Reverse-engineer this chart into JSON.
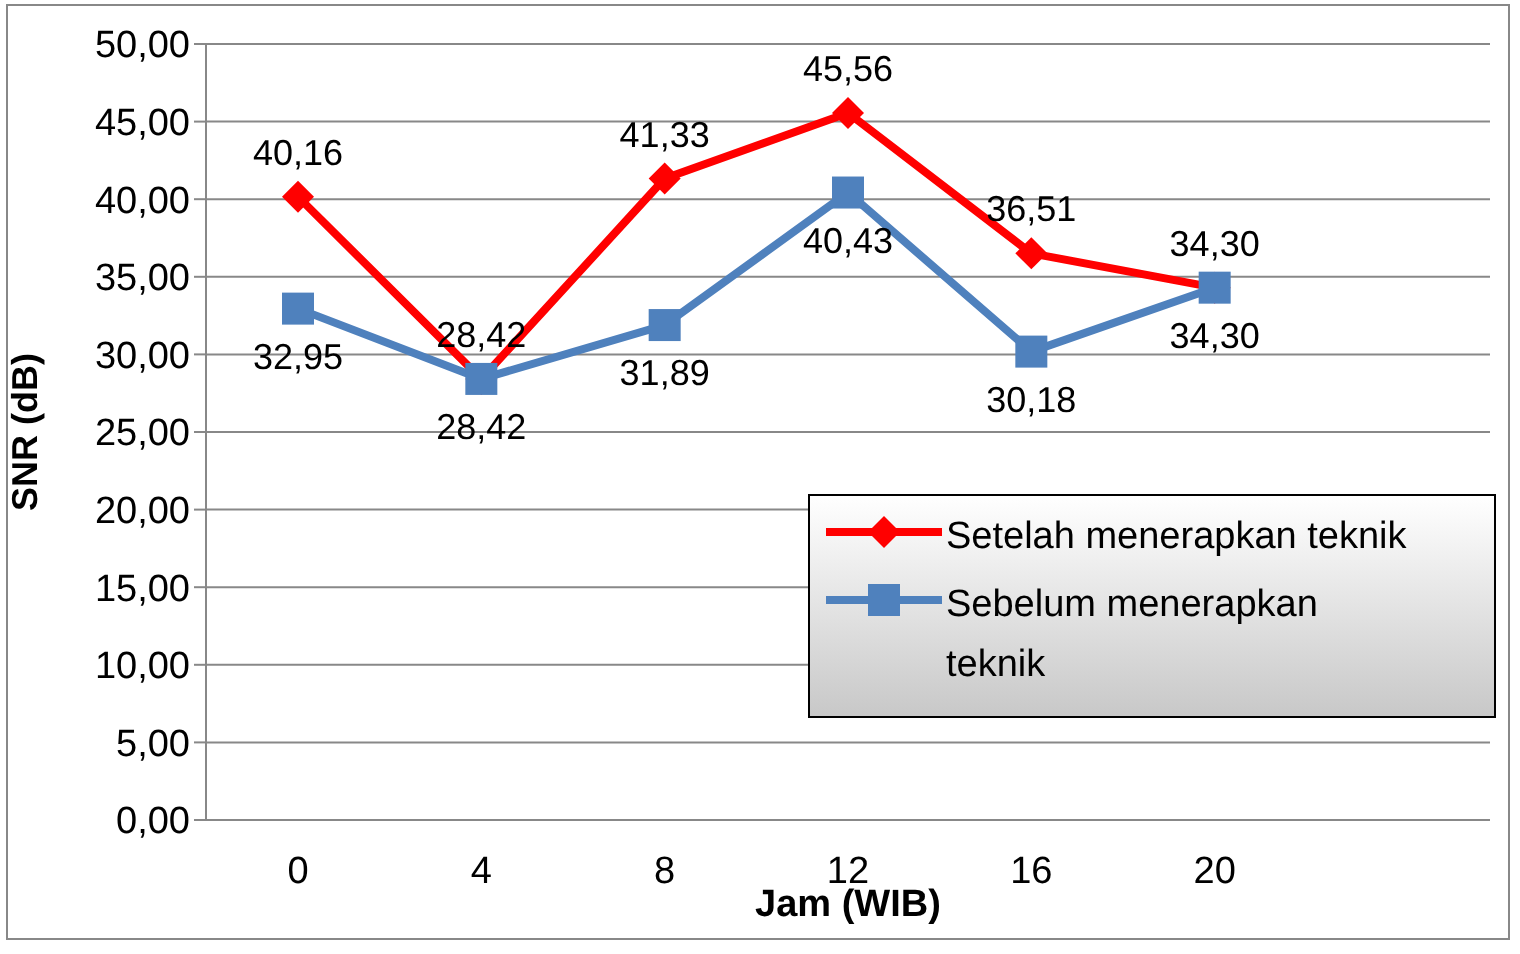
{
  "chart_data": {
    "type": "line",
    "xlabel": "Jam (WIB)",
    "ylabel": "SNR (dB)",
    "categories": [
      "0",
      "4",
      "8",
      "12",
      "16",
      "20",
      null
    ],
    "series": [
      {
        "name": "Setelah menerapkan teknik",
        "color": "#ff0000",
        "marker": "diamond",
        "values": [
          40.16,
          28.42,
          41.33,
          45.56,
          36.51,
          34.3,
          null
        ],
        "value_labels": [
          "40,16",
          "28,42",
          "41,33",
          "45,56",
          "36,51",
          "34,30",
          null
        ]
      },
      {
        "name": "Sebelum menerapkan teknik",
        "color": "#4f81bd",
        "marker": "square",
        "values": [
          32.95,
          28.42,
          31.89,
          40.43,
          30.18,
          34.3,
          null
        ],
        "value_labels": [
          "32,95",
          "28,42",
          "31,89",
          "40,43",
          "30,18",
          "34,30",
          null
        ]
      }
    ],
    "ylim": [
      0,
      50
    ],
    "yticks": [
      {
        "value": 0,
        "label": "0,00"
      },
      {
        "value": 5,
        "label": "5,00"
      },
      {
        "value": 10,
        "label": "10,00"
      },
      {
        "value": 15,
        "label": "15,00"
      },
      {
        "value": 20,
        "label": "20,00"
      },
      {
        "value": 25,
        "label": "25,00"
      },
      {
        "value": 30,
        "label": "30,00"
      },
      {
        "value": 35,
        "label": "35,00"
      },
      {
        "value": 40,
        "label": "40,00"
      },
      {
        "value": 45,
        "label": "45,00"
      },
      {
        "value": 50,
        "label": "50,00"
      }
    ],
    "grid": "y",
    "legend": "bottom right"
  }
}
